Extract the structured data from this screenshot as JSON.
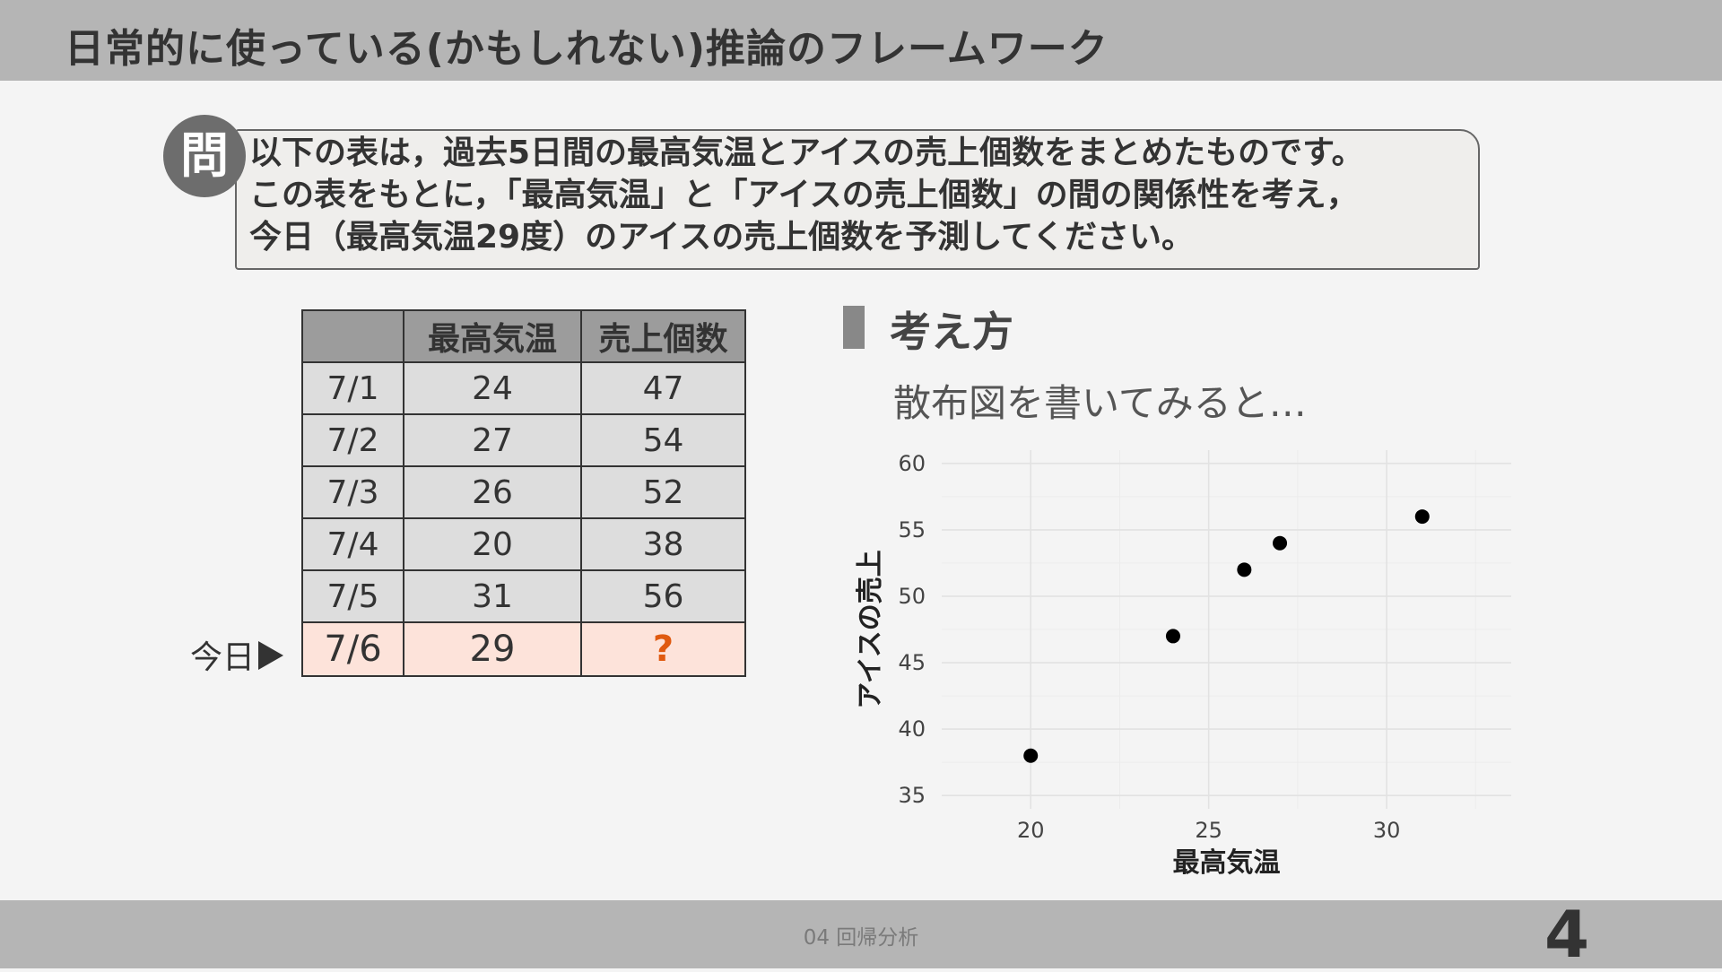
{
  "header": {
    "title": "日常的に使っている(かもしれない)推論のフレームワーク"
  },
  "question": {
    "badge": "問",
    "lines": [
      "以下の表は，過去5日間の最高気温とアイスの売上個数をまとめたものです。",
      "この表をもとに，「最高気温」と「アイスの売上個数」の間の関係性を考え，",
      "今日（最高気温29度）のアイスの売上個数を予測してください。"
    ]
  },
  "table": {
    "headers": [
      "",
      "最高気温",
      "売上個数"
    ],
    "rows": [
      [
        "7/1",
        "24",
        "47"
      ],
      [
        "7/2",
        "27",
        "54"
      ],
      [
        "7/3",
        "26",
        "52"
      ],
      [
        "7/4",
        "20",
        "38"
      ],
      [
        "7/5",
        "31",
        "56"
      ]
    ],
    "today_row": [
      "7/6",
      "29",
      "?"
    ],
    "today_label": "今日"
  },
  "section": {
    "title": "考え方",
    "subtitle": "散布図を書いてみると…"
  },
  "chart_data": {
    "type": "scatter",
    "x": [
      24,
      27,
      26,
      20,
      31
    ],
    "y": [
      47,
      54,
      52,
      38,
      56
    ],
    "xlabel": "最高気温",
    "ylabel": "アイスの売上",
    "xlim": [
      17.5,
      33.5
    ],
    "ylim": [
      34,
      61
    ],
    "xticks": [
      20,
      25,
      30
    ],
    "yticks": [
      35,
      40,
      45,
      50,
      55,
      60
    ],
    "grid": true
  },
  "footer": {
    "text": "04 回帰分析",
    "page": "4"
  }
}
